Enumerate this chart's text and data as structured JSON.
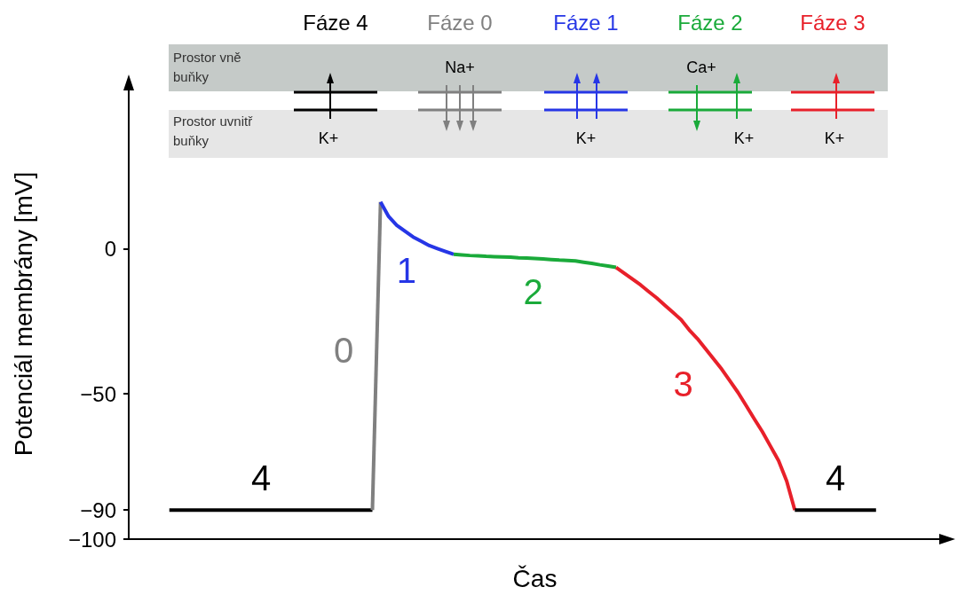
{
  "chart_data": {
    "type": "line",
    "xlabel": "Čas",
    "ylabel": "Potenciál membrány [mV]",
    "ylim": [
      -100,
      55
    ],
    "categories": [
      null,
      null,
      null,
      null,
      null,
      null,
      null,
      null,
      null,
      null,
      null,
      null,
      null,
      null,
      null,
      null,
      null,
      null,
      null,
      null,
      null,
      null,
      null,
      null,
      null,
      null,
      null,
      null,
      null,
      null,
      null,
      null,
      null,
      null,
      null,
      null,
      null,
      null,
      null,
      null,
      null,
      null,
      null,
      null,
      null,
      null,
      null,
      null,
      null,
      null,
      null,
      null,
      null,
      null,
      null,
      null,
      null,
      null,
      null,
      null,
      null,
      null,
      null,
      null,
      null,
      null,
      null,
      null,
      null,
      null,
      null,
      null,
      null,
      null,
      null,
      null,
      null,
      null,
      null,
      null,
      null,
      null,
      null,
      null,
      null,
      null,
      null,
      null,
      null,
      null,
      null,
      null,
      null,
      null,
      null,
      null,
      null,
      null,
      null,
      null,
      null
    ],
    "yticks": [
      {
        "value": -100,
        "label": "−100"
      },
      {
        "value": -90,
        "label": "−90"
      },
      {
        "value": -50,
        "label": "−50"
      },
      {
        "value": 0,
        "label": "0"
      }
    ],
    "tick_labels": "y",
    "grid": false,
    "marker": "none",
    "line_style": "solid",
    "series": [
      {
        "color": "#000000",
        "values": [
          null,
          null,
          null,
          null,
          null,
          -90,
          -90,
          -90,
          -90,
          -90,
          -90,
          -90,
          -90,
          -90,
          -90,
          -90,
          -90,
          -90,
          -90,
          -90,
          -90,
          -90,
          -90,
          -90,
          -90,
          -90,
          -90,
          -90,
          -90,
          -90,
          -90,
          null,
          null,
          null,
          null,
          null,
          null,
          null,
          null,
          null,
          null,
          null,
          null,
          null,
          null,
          null,
          null,
          null,
          null,
          null,
          null,
          null,
          null,
          null,
          null,
          null,
          null,
          null,
          null,
          null,
          null,
          null,
          null,
          null,
          null,
          null,
          null,
          null,
          null,
          null,
          null,
          null,
          null,
          null,
          null,
          null,
          null,
          null,
          null,
          null,
          null,
          null,
          null,
          null,
          null,
          null,
          null,
          null,
          null,
          null,
          null,
          null,
          null,
          null,
          null,
          null,
          null,
          null,
          null,
          null,
          null
        ]
      },
      {
        "color": "#808080",
        "values": [
          null,
          null,
          null,
          null,
          null,
          null,
          null,
          null,
          null,
          null,
          null,
          null,
          null,
          null,
          null,
          null,
          null,
          null,
          null,
          null,
          null,
          null,
          null,
          null,
          null,
          null,
          null,
          null,
          null,
          null,
          -90,
          16,
          null,
          null,
          null,
          null,
          null,
          null,
          null,
          null,
          null,
          null,
          null,
          null,
          null,
          null,
          null,
          null,
          null,
          null,
          null,
          null,
          null,
          null,
          null,
          null,
          null,
          null,
          null,
          null,
          null,
          null,
          null,
          null,
          null,
          null,
          null,
          null,
          null,
          null,
          null,
          null,
          null,
          null,
          null,
          null,
          null,
          null,
          null,
          null,
          null,
          null,
          null,
          null,
          null,
          null,
          null,
          null,
          null,
          null,
          null,
          null,
          null,
          null,
          null,
          null,
          null,
          null,
          null,
          null,
          null
        ]
      },
      {
        "color": "#2636e6",
        "values": [
          null,
          null,
          null,
          null,
          null,
          null,
          null,
          null,
          null,
          null,
          null,
          null,
          null,
          null,
          null,
          null,
          null,
          null,
          null,
          null,
          null,
          null,
          null,
          null,
          null,
          null,
          null,
          null,
          null,
          null,
          null,
          16,
          11,
          8,
          6,
          4,
          2.5,
          1,
          0,
          -1,
          -2,
          null,
          null,
          null,
          null,
          null,
          null,
          null,
          null,
          null,
          null,
          null,
          null,
          null,
          null,
          null,
          null,
          null,
          null,
          null,
          null,
          null,
          null,
          null,
          null,
          null,
          null,
          null,
          null,
          null,
          null,
          null,
          null,
          null,
          null,
          null,
          null,
          null,
          null,
          null,
          null,
          null,
          null,
          null,
          null,
          null,
          null,
          null,
          null,
          null,
          null,
          null,
          null,
          null,
          null,
          null,
          null,
          null,
          null,
          null,
          null
        ]
      },
      {
        "color": "#1aaa3a",
        "values": [
          null,
          null,
          null,
          null,
          null,
          null,
          null,
          null,
          null,
          null,
          null,
          null,
          null,
          null,
          null,
          null,
          null,
          null,
          null,
          null,
          null,
          null,
          null,
          null,
          null,
          null,
          null,
          null,
          null,
          null,
          null,
          null,
          null,
          null,
          null,
          null,
          null,
          null,
          null,
          null,
          -2,
          -2.2,
          -2.4,
          -2.5,
          -2.7,
          -2.8,
          -2.9,
          -3,
          -3.2,
          -3.3,
          -3.4,
          -3.6,
          -3.8,
          -4,
          -4.1,
          -4.3,
          -4.7,
          -5.1,
          -5.6,
          -6,
          -6.5,
          null,
          null,
          null,
          null,
          null,
          null,
          null,
          null,
          null,
          null,
          null,
          null,
          null,
          null,
          null,
          null,
          null,
          null,
          null,
          null,
          null,
          null,
          null,
          null,
          null,
          null,
          null,
          null,
          null,
          null,
          null,
          null,
          null,
          null,
          null,
          null,
          null,
          null,
          null,
          null
        ]
      },
      {
        "color": "#e8202a",
        "values": [
          null,
          null,
          null,
          null,
          null,
          null,
          null,
          null,
          null,
          null,
          null,
          null,
          null,
          null,
          null,
          null,
          null,
          null,
          null,
          null,
          null,
          null,
          null,
          null,
          null,
          null,
          null,
          null,
          null,
          null,
          null,
          null,
          null,
          null,
          null,
          null,
          null,
          null,
          null,
          null,
          null,
          null,
          null,
          null,
          null,
          null,
          null,
          null,
          null,
          null,
          null,
          null,
          null,
          null,
          null,
          null,
          null,
          null,
          null,
          null,
          -6.5,
          -8.5,
          -10.5,
          -12.5,
          -14.8,
          -17,
          -19.5,
          -22,
          -24.5,
          -28,
          -31,
          -34.5,
          -38,
          -41.5,
          -45.5,
          -49.5,
          -54,
          -58.6,
          -63,
          -68,
          -73,
          -80,
          -90,
          null,
          null,
          null,
          null,
          null,
          null,
          null,
          null,
          null,
          null,
          null,
          null,
          null,
          null,
          null,
          null,
          null,
          null
        ]
      },
      {
        "color": "#000000",
        "values": [
          null,
          null,
          null,
          null,
          null,
          null,
          null,
          null,
          null,
          null,
          null,
          null,
          null,
          null,
          null,
          null,
          null,
          null,
          null,
          null,
          null,
          null,
          null,
          null,
          null,
          null,
          null,
          null,
          null,
          null,
          null,
          null,
          null,
          null,
          null,
          null,
          null,
          null,
          null,
          null,
          null,
          null,
          null,
          null,
          null,
          null,
          null,
          null,
          null,
          null,
          null,
          null,
          null,
          null,
          null,
          null,
          null,
          null,
          null,
          null,
          null,
          null,
          null,
          null,
          null,
          null,
          null,
          null,
          null,
          null,
          null,
          null,
          null,
          null,
          null,
          null,
          null,
          null,
          null,
          null,
          null,
          null,
          -90,
          -90,
          -90,
          -90,
          -90,
          -90,
          -90,
          -90,
          -90,
          -90,
          -90,
          null,
          null,
          null,
          null,
          null,
          null,
          null,
          null
        ]
      }
    ],
    "annotations": [
      "4",
      "0",
      "1",
      "2",
      "3",
      "4",
      "Fáze 4",
      "Fáze 0",
      "Fáze 1",
      "Fáze 2",
      "Fáze 3",
      "Prostor vně buňky",
      "Prostor uvnitř buňky",
      "Na+",
      "Ca+",
      "K+",
      "K+",
      "K+",
      "K+"
    ]
  }
}
